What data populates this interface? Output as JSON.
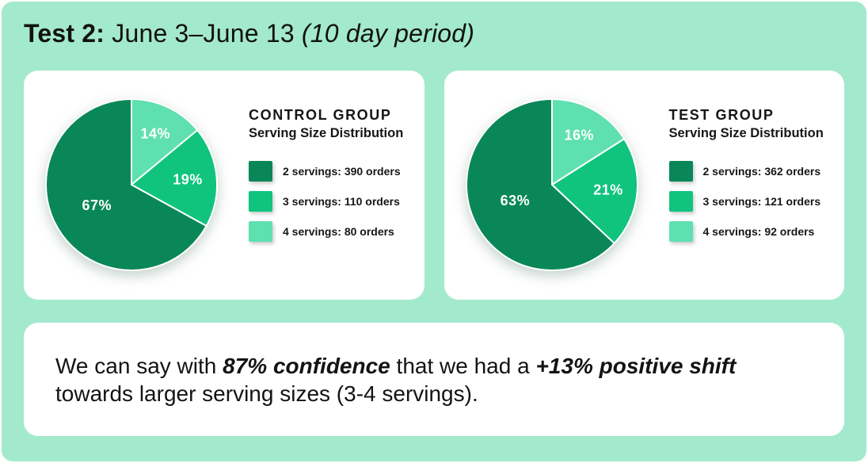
{
  "page": {
    "background_color": "#a3e9cd",
    "card_color": "#ffffff",
    "text_color": "#131313"
  },
  "title": {
    "bold": "Test 2:",
    "regular": " June 3–June 13 ",
    "italic": "(10 day period)"
  },
  "chart_data": [
    {
      "type": "pie",
      "title": "CONTROL GROUP",
      "subtitle": "Serving Size Distribution",
      "layout": {
        "start_angle_deg": 0,
        "direction": "clockwise",
        "first_drawn": "4 servings",
        "legend_position": "right"
      },
      "slices": [
        {
          "label": "2 servings",
          "orders": 390,
          "pct": 67,
          "pct_label": "67%",
          "legend": "2 servings: 390 orders",
          "color": "#0a8758"
        },
        {
          "label": "3 servings",
          "orders": 110,
          "pct": 19,
          "pct_label": "19%",
          "legend": "3 servings: 110 orders",
          "color": "#10c47e"
        },
        {
          "label": "4 servings",
          "orders": 80,
          "pct": 14,
          "pct_label": "14%",
          "legend": "4 servings: 80 orders",
          "color": "#5fe0b0"
        }
      ]
    },
    {
      "type": "pie",
      "title": "TEST GROUP",
      "subtitle": "Serving Size Distribution",
      "layout": {
        "start_angle_deg": 0,
        "direction": "clockwise",
        "first_drawn": "4 servings",
        "legend_position": "right"
      },
      "slices": [
        {
          "label": "2 servings",
          "orders": 362,
          "pct": 63,
          "pct_label": "63%",
          "legend": "2 servings: 362 orders",
          "color": "#0a8758"
        },
        {
          "label": "3 servings",
          "orders": 121,
          "pct": 21,
          "pct_label": "21%",
          "legend": "3 servings: 121 orders",
          "color": "#10c47e"
        },
        {
          "label": "4 servings",
          "orders": 92,
          "pct": 16,
          "pct_label": "16%",
          "legend": "4 servings: 92 orders",
          "color": "#5fe0b0"
        }
      ]
    }
  ],
  "summary": {
    "segments": [
      {
        "text": "We can say with ",
        "emphasis": false
      },
      {
        "text": "87% confidence",
        "emphasis": true
      },
      {
        "text": " that we had a ",
        "emphasis": false
      },
      {
        "text": "+13% positive shift",
        "emphasis": true
      },
      {
        "text": " towards larger serving sizes (3-4 servings).",
        "emphasis": false
      }
    ]
  }
}
